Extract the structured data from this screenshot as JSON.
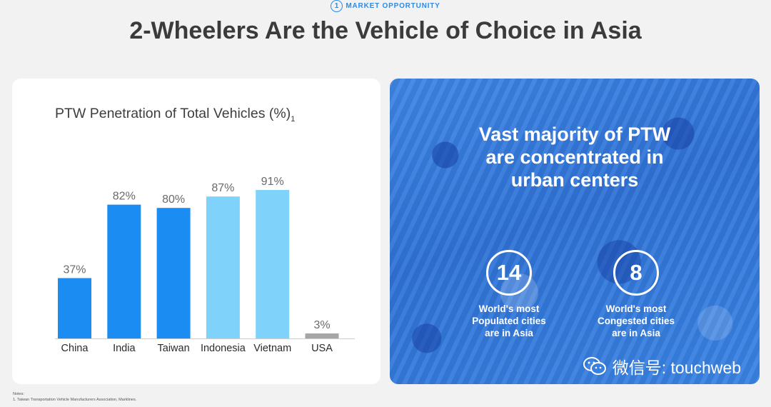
{
  "header": {
    "section_number": "1",
    "section_label": "MARKET OPPORTUNITY",
    "title": "2-Wheelers Are the Vehicle of Choice in Asia"
  },
  "chart_data": {
    "type": "bar",
    "title": "PTW Penetration of Total Vehicles (%)",
    "title_note": "1",
    "categories": [
      "China",
      "India",
      "Taiwan",
      "Indonesia",
      "Vietnam",
      "USA"
    ],
    "values": [
      37,
      82,
      80,
      87,
      91,
      3
    ],
    "value_labels": [
      "37%",
      "82%",
      "80%",
      "87%",
      "91%",
      "3%"
    ],
    "colors": [
      "#1a8cf2",
      "#1a8cf2",
      "#1a8cf2",
      "#7fd3fb",
      "#7fd3fb",
      "#a6a6a6"
    ],
    "ylim": [
      0,
      100
    ],
    "grid": false,
    "legend": "none"
  },
  "panel": {
    "heading_lines": [
      "Vast majority of PTW",
      "are concentrated in",
      "urban centers"
    ],
    "stats": [
      {
        "value": "14",
        "caption_lines": [
          "World's most",
          "Populated cities",
          "are in Asia"
        ]
      },
      {
        "value": "8",
        "caption_lines": [
          "World's most",
          "Congested cities",
          "are in Asia"
        ]
      }
    ],
    "watermark": "微信号: touchweb"
  },
  "notes": {
    "label": "Notes:",
    "items": [
      "1.    Taiwan Transportation Vehicle Manufacturers Association, Marklines."
    ]
  }
}
